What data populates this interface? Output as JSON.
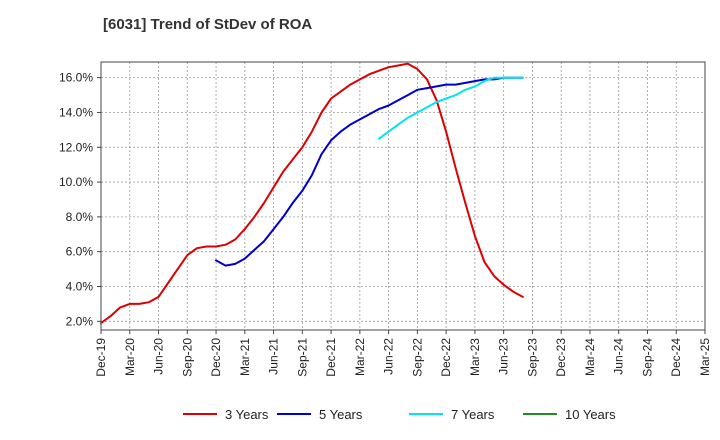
{
  "title": "[6031]  Trend of StDev of ROA",
  "chart_data": {
    "type": "line",
    "title": "[6031]  Trend of StDev of ROA",
    "xlabel": "",
    "ylabel": "",
    "x_ticks": [
      "Dec-19",
      "Mar-20",
      "Jun-20",
      "Sep-20",
      "Dec-20",
      "Mar-21",
      "Jun-21",
      "Sep-21",
      "Dec-21",
      "Mar-22",
      "Jun-22",
      "Sep-22",
      "Dec-22",
      "Mar-23",
      "Jun-23",
      "Sep-23",
      "Dec-23",
      "Mar-24",
      "Jun-24",
      "Sep-24",
      "Dec-24",
      "Mar-25"
    ],
    "y_ticks": [
      "2.0%",
      "4.0%",
      "6.0%",
      "8.0%",
      "10.0%",
      "12.0%",
      "14.0%",
      "16.0%"
    ],
    "ylim": [
      1.5,
      16.9
    ],
    "grid": true,
    "legend": "bottom",
    "series": [
      {
        "name": "3 Years",
        "color": "#dd0000",
        "start_index": 0,
        "values": [
          1.9,
          2.3,
          2.8,
          3.0,
          3.0,
          3.1,
          3.4,
          4.2,
          5.0,
          5.8,
          6.2,
          6.3,
          6.3,
          6.4,
          6.7,
          7.3,
          8.0,
          8.8,
          9.7,
          10.6,
          11.3,
          12.0,
          12.9,
          14.0,
          14.8,
          15.2,
          15.6,
          15.9,
          16.2,
          16.4,
          16.6,
          16.7,
          16.8,
          16.5,
          15.9,
          14.7,
          12.9,
          10.8,
          8.8,
          6.9,
          5.4,
          4.6,
          4.1,
          3.7,
          3.4
        ]
      },
      {
        "name": "5 Years",
        "color": "#0000cc",
        "start_index": 12,
        "values": [
          5.5,
          5.2,
          5.3,
          5.6,
          6.1,
          6.6,
          7.3,
          8.0,
          8.8,
          9.5,
          10.4,
          11.6,
          12.4,
          12.9,
          13.3,
          13.6,
          13.9,
          14.2,
          14.4,
          14.7,
          15.0,
          15.3,
          15.4,
          15.5,
          15.6,
          15.6,
          15.7,
          15.8,
          15.9,
          15.9,
          16.0,
          16.0,
          16.0
        ]
      },
      {
        "name": "7 Years",
        "color": "#00e5ee",
        "start_index": 29,
        "values": [
          12.5,
          12.9,
          13.3,
          13.7,
          14.0,
          14.3,
          14.6,
          14.8,
          15.0,
          15.3,
          15.5,
          15.8,
          16.0,
          16.0,
          16.0,
          16.0
        ]
      },
      {
        "name": "10 Years",
        "color": "#228b22",
        "start_index": 44,
        "values": []
      }
    ]
  }
}
